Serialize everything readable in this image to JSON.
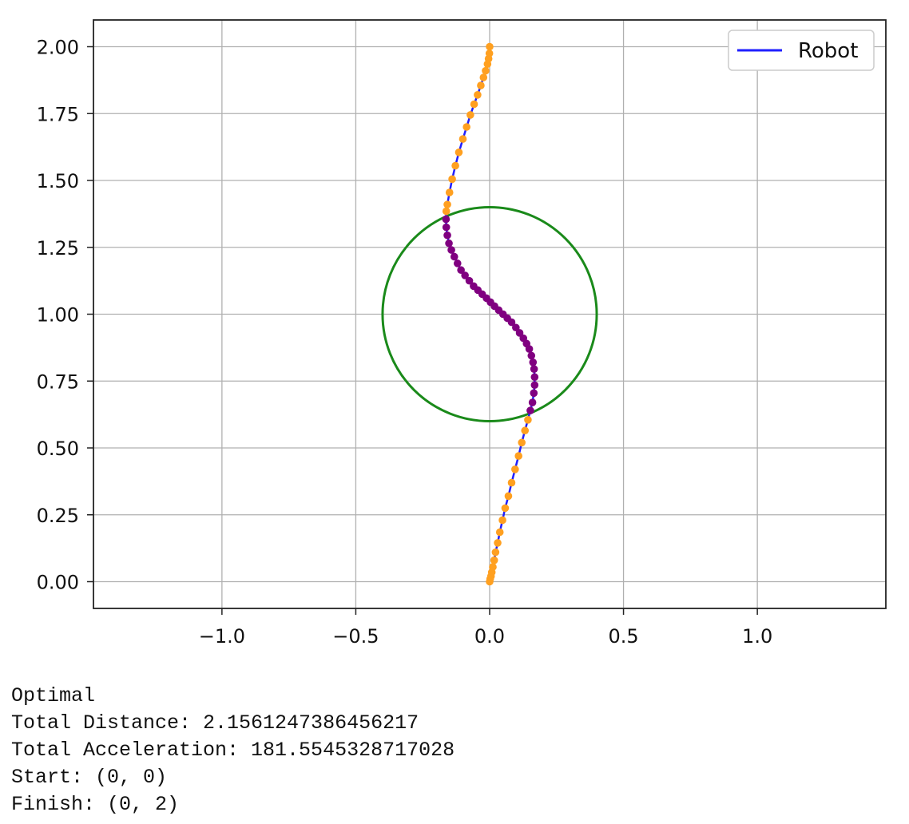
{
  "chart_data": {
    "type": "line",
    "title": "",
    "xlabel": "",
    "ylabel": "",
    "xlim": [
      -1.48,
      1.48
    ],
    "ylim": [
      -0.1,
      2.1
    ],
    "x_ticks": [
      -1.0,
      -0.5,
      0.0,
      0.5,
      1.0
    ],
    "x_tick_labels": [
      "−1.0",
      "−0.5",
      "0.0",
      "0.5",
      "1.0"
    ],
    "y_ticks": [
      0.0,
      0.25,
      0.5,
      0.75,
      1.0,
      1.25,
      1.5,
      1.75,
      2.0
    ],
    "y_tick_labels": [
      "0.00",
      "0.25",
      "0.50",
      "0.75",
      "1.00",
      "1.25",
      "1.50",
      "1.75",
      "2.00"
    ],
    "grid": true,
    "legend_position": "top-right",
    "legend": [
      "Robot"
    ],
    "colors": {
      "line": "#1f1fff",
      "outside_points": "#ffa020",
      "inside_points": "#800080",
      "obstacle": "#1a8a1a",
      "grid": "#b0b0b0"
    },
    "series": [
      {
        "name": "Robot",
        "x": [
          0.0,
          0.002,
          0.005,
          0.008,
          0.012,
          0.017,
          0.022,
          0.03,
          0.038,
          0.048,
          0.058,
          0.07,
          0.082,
          0.095,
          0.108,
          0.12,
          0.132,
          0.143,
          0.152,
          0.16,
          0.165,
          0.168,
          0.168,
          0.166,
          0.162,
          0.156,
          0.148,
          0.138,
          0.126,
          0.112,
          0.098,
          0.082,
          0.066,
          0.05,
          0.034,
          0.018,
          0.003,
          -0.012,
          -0.028,
          -0.044,
          -0.06,
          -0.076,
          -0.092,
          -0.107,
          -0.12,
          -0.132,
          -0.143,
          -0.152,
          -0.158,
          -0.162,
          -0.163,
          -0.162,
          -0.158,
          -0.15,
          -0.14,
          -0.128,
          -0.115,
          -0.1,
          -0.086,
          -0.072,
          -0.058,
          -0.045,
          -0.033,
          -0.023,
          -0.015,
          -0.008,
          -0.004,
          -0.001,
          0.0
        ],
        "y": [
          0.0,
          0.01,
          0.02,
          0.035,
          0.055,
          0.08,
          0.11,
          0.145,
          0.185,
          0.23,
          0.275,
          0.32,
          0.37,
          0.42,
          0.47,
          0.52,
          0.565,
          0.605,
          0.64,
          0.67,
          0.705,
          0.735,
          0.765,
          0.795,
          0.82,
          0.845,
          0.87,
          0.89,
          0.91,
          0.93,
          0.95,
          0.97,
          0.985,
          1.0,
          1.015,
          1.03,
          1.045,
          1.06,
          1.075,
          1.09,
          1.105,
          1.125,
          1.145,
          1.165,
          1.19,
          1.215,
          1.24,
          1.265,
          1.295,
          1.325,
          1.355,
          1.385,
          1.41,
          1.455,
          1.505,
          1.555,
          1.605,
          1.655,
          1.7,
          1.745,
          1.785,
          1.82,
          1.855,
          1.885,
          1.91,
          1.935,
          1.955,
          1.975,
          2.0
        ]
      }
    ],
    "obstacle": {
      "type": "circle",
      "center": [
        0.0,
        1.0
      ],
      "radius": 0.4
    }
  },
  "output": {
    "lines": [
      "Optimal",
      "Total Distance: 2.1561247386456217",
      "Total Acceleration: 181.5545328717028",
      "Start: (0, 0)",
      "Finish: (0, 2)"
    ]
  }
}
